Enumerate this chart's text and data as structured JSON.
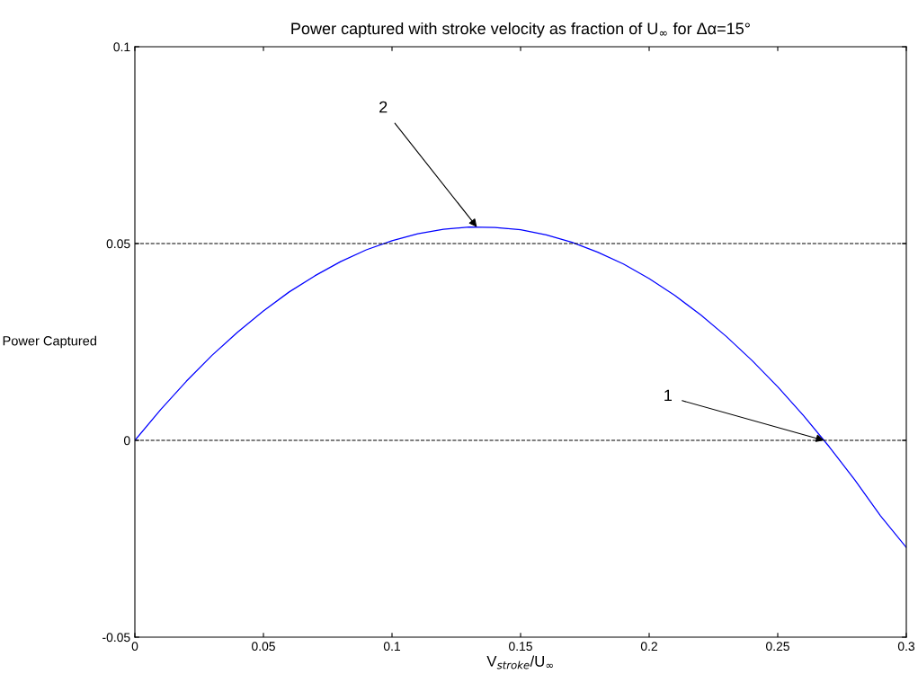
{
  "chart_data": {
    "type": "line",
    "title": "Power captured with stroke velocity as fraction of U$_{∞}$ for Δα=15°",
    "xlabel": "V$_{stroke}$/U$_{∞}$",
    "ylabel": "Power Captured",
    "x": [
      0,
      0.01,
      0.02,
      0.03,
      0.04,
      0.05,
      0.06,
      0.07,
      0.08,
      0.09,
      0.1,
      0.11,
      0.12,
      0.13,
      0.14,
      0.15,
      0.16,
      0.17,
      0.18,
      0.19,
      0.2,
      0.21,
      0.22,
      0.23,
      0.24,
      0.25,
      0.26,
      0.27,
      0.28,
      0.29,
      0.3
    ],
    "series": [
      {
        "color": "#0000ff",
        "values": [
          0,
          0.0078,
          0.015,
          0.0216,
          0.0275,
          0.0329,
          0.0377,
          0.0418,
          0.0454,
          0.0484,
          0.0507,
          0.0525,
          0.0536,
          0.0542,
          0.0541,
          0.0535,
          0.0522,
          0.0503,
          0.0478,
          0.0448,
          0.0411,
          0.0368,
          0.0319,
          0.0264,
          0.0203,
          0.0136,
          0.0063,
          -0.0016,
          -0.0101,
          -0.0192,
          -0.0272
        ]
      }
    ],
    "xlim": [
      0,
      0.3
    ],
    "xticks": [
      0,
      0.05,
      0.1,
      0.15,
      0.2,
      0.25,
      0.3
    ],
    "ylim": [
      -0.05,
      0.1
    ],
    "yticks": [
      -0.05,
      0,
      0.05,
      0.1
    ],
    "ref_lines": [
      {
        "axis": "y",
        "value": 0.05,
        "color": "#000000",
        "line_style": "dashed"
      },
      {
        "axis": "y",
        "value": 0,
        "color": "#000000",
        "line_style": "dashed"
      }
    ],
    "annotations": [
      {
        "text": "2",
        "x": 0.133,
        "y": 0.0542
      },
      {
        "text": "1",
        "x": 0.268,
        "y": 0
      }
    ],
    "grid": false,
    "legend": false,
    "marker": "none",
    "line_style": "solid"
  }
}
